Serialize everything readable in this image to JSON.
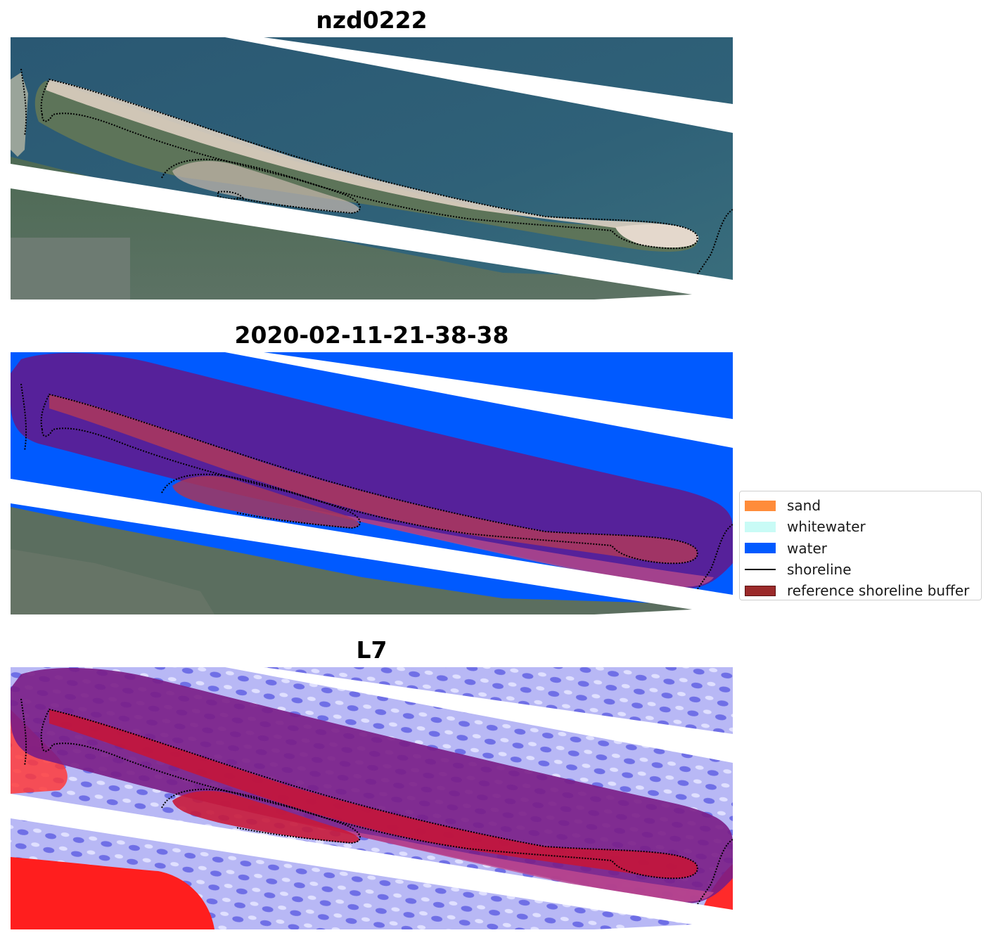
{
  "panels": [
    {
      "title": "nzd0222"
    },
    {
      "title": "2020-02-11-21-38-38"
    },
    {
      "title": "L7"
    }
  ],
  "legend": {
    "items": [
      {
        "label": "sand",
        "kind": "patch",
        "color": "#ff8c3a",
        "border": "none"
      },
      {
        "label": "whitewater",
        "kind": "patch",
        "color": "#c9fbf6",
        "border": "none"
      },
      {
        "label": "water",
        "kind": "patch",
        "color": "#005aff",
        "border": "none"
      },
      {
        "label": "shoreline",
        "kind": "line",
        "color": "#000000",
        "border": "none"
      },
      {
        "label": "reference shoreline buffer",
        "kind": "patch",
        "color": "#9b2a2a",
        "border": "#5a1010"
      }
    ]
  },
  "colors": {
    "ocean_rgb": "#2f5f78",
    "land_rgb": "#4a6652",
    "sand_rgb": "#e8d8c8",
    "water_class": "#005aff",
    "buffer": "#5b1f95",
    "index_high": "#ff0000",
    "index_low": "#c8c8ff"
  }
}
